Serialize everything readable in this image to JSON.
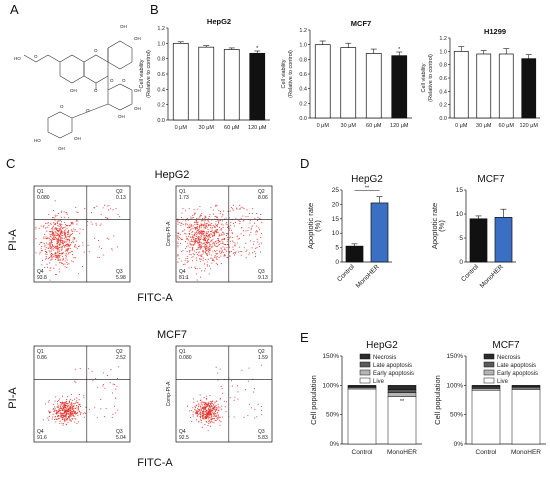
{
  "panel_labels": [
    "A",
    "B",
    "C",
    "D",
    "E"
  ],
  "molecule": {
    "labels": [
      "OH",
      "OH",
      "HO",
      "O",
      "O",
      "OH",
      "O",
      "O",
      "O",
      "O",
      "OH",
      "OH",
      "OH",
      "OH",
      "OH",
      "O",
      "HO",
      "HO",
      "O",
      "O",
      "OH"
    ]
  },
  "flow": {
    "cell_line_1": "HepG2",
    "cell_line_2": "MCF7",
    "ylabel": "PI-A",
    "xlabel": "FITC-A",
    "inner_ylabel": "Comp-PI-A",
    "plots": [
      {
        "q1": "0.080",
        "q2": "0.13",
        "q3": "5.98",
        "q4": "93.8"
      },
      {
        "q1": "1.73",
        "q2": "8.06",
        "q3": "9.13",
        "q4": "81.1"
      },
      {
        "q1": "0.86",
        "q2": "2.52",
        "q3": "5.04",
        "q4": "91.6"
      },
      {
        "q1": "0.080",
        "q2": "1.59",
        "q3": "5.83",
        "q4": "92.5"
      }
    ]
  },
  "chart_data": [
    {
      "type": "bar",
      "title": "HepG2",
      "ylabel": "Cell viability (Relative to control)",
      "categories": [
        "0 μM",
        "30 μM",
        "60 μM",
        "120 μM"
      ],
      "values": [
        1.0,
        0.95,
        0.92,
        0.87
      ],
      "errors": [
        0.02,
        0.02,
        0.02,
        0.03
      ],
      "yticks": [
        "0.0",
        "0.2",
        "0.4",
        "0.6",
        "0.8",
        "1.0",
        "1.2"
      ],
      "ylim": [
        0,
        1.2
      ],
      "annotation": "*"
    },
    {
      "type": "bar",
      "title": "MCF7",
      "ylabel": "Cell viability (Relative to control)",
      "categories": [
        "0 μM",
        "30 μM",
        "60 μM",
        "120 μM"
      ],
      "values": [
        1.0,
        0.96,
        0.88,
        0.85
      ],
      "errors": [
        0.05,
        0.06,
        0.06,
        0.05
      ],
      "yticks": [
        "0.0",
        "0.2",
        "0.4",
        "0.6",
        "0.8",
        "1.0",
        "1.2"
      ],
      "ylim": [
        0,
        1.2
      ],
      "annotation": "*"
    },
    {
      "type": "bar",
      "title": "H1299",
      "ylabel": "Cell viability (Relative to control)",
      "categories": [
        "0 μM",
        "30 μM",
        "60 μM",
        "120 μM"
      ],
      "values": [
        1.0,
        0.96,
        0.96,
        0.89
      ],
      "errors": [
        0.07,
        0.05,
        0.08,
        0.06
      ],
      "yticks": [
        "0.0",
        "0.2",
        "0.4",
        "0.6",
        "0.8",
        "1.0",
        "1.2"
      ],
      "ylim": [
        0,
        1.2
      ],
      "annotation": ""
    },
    {
      "type": "bar",
      "title": "HepG2",
      "ylabel": "Apoptotic rate (%)",
      "categories": [
        "Control",
        "MonoHER"
      ],
      "values": [
        5.5,
        20.5
      ],
      "errors": [
        0.8,
        2.2
      ],
      "colors": [
        "#111111",
        "#3a6fc4"
      ],
      "yticks": [
        "0",
        "5",
        "10",
        "15",
        "20",
        "25"
      ],
      "ylim": [
        0,
        25
      ],
      "annotation": "**"
    },
    {
      "type": "bar",
      "title": "MCF7",
      "ylabel": "Apoptotic rate (%)",
      "categories": [
        "Control",
        "MonoHER"
      ],
      "values": [
        9.0,
        9.3
      ],
      "errors": [
        0.6,
        1.7
      ],
      "colors": [
        "#111111",
        "#3a6fc4"
      ],
      "yticks": [
        "0",
        "5",
        "10",
        "15"
      ],
      "ylim": [
        0,
        15
      ],
      "annotation": ""
    },
    {
      "type": "bar",
      "title": "HepG2",
      "ylabel": "Cell population",
      "categories": [
        "Control",
        "MonoHER"
      ],
      "series": [
        {
          "name": "Live",
          "values": [
            93.8,
            81.1
          ]
        },
        {
          "name": "Early apoptosis",
          "values": [
            2.5,
            6.5
          ]
        },
        {
          "name": "Late apoptosis",
          "values": [
            1.5,
            5.0
          ]
        },
        {
          "name": "Necrosis",
          "values": [
            2.2,
            7.4
          ]
        }
      ],
      "yticks": [
        "0%",
        "50%",
        "100%",
        "150%"
      ],
      "ylim": [
        0,
        150
      ],
      "annotation": "**",
      "legend": "top"
    },
    {
      "type": "bar",
      "title": "MCF7",
      "ylabel": "Cell population",
      "categories": [
        "Control",
        "MonoHER"
      ],
      "series": [
        {
          "name": "Live",
          "values": [
            91.6,
            92.5
          ]
        },
        {
          "name": "Early apoptosis",
          "values": [
            3.0,
            3.0
          ]
        },
        {
          "name": "Late apoptosis",
          "values": [
            2.5,
            2.5
          ]
        },
        {
          "name": "Necrosis",
          "values": [
            2.9,
            2.0
          ]
        }
      ],
      "yticks": [
        "0%",
        "50%",
        "100%",
        "150%"
      ],
      "ylim": [
        0,
        150
      ],
      "annotation": "",
      "legend": "top"
    }
  ],
  "legend_labels": [
    "Necrosis",
    "Late apoptosis",
    "Early apoptosis",
    "Live"
  ],
  "legend_colors": [
    "#2b2b2b",
    "#5a5a5a",
    "#b5b5b5",
    "#ffffff"
  ]
}
